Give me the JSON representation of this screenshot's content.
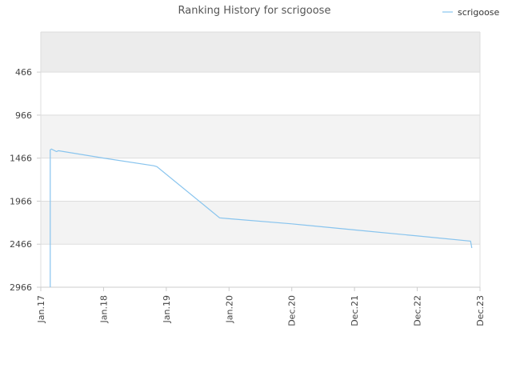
{
  "chart_data": {
    "type": "line",
    "title": "Ranking History for scrigoose",
    "xlabel": "",
    "ylabel": "",
    "y_inverted": true,
    "grid": true,
    "legend_position": "top-right",
    "x_tick_labels": [
      "Jan.17",
      "Jan.18",
      "Jan.19",
      "Jan.20",
      "Dec.20",
      "Dec.21",
      "Dec.22",
      "Dec.23"
    ],
    "y_ticks": [
      466,
      966,
      1466,
      1966,
      2466,
      2966
    ],
    "ylim": [
      2966,
      0
    ],
    "series": [
      {
        "name": "scrigoose",
        "color": "#88c4ee",
        "points": [
          {
            "x": 0.15,
            "y": 2966
          },
          {
            "x": 0.15,
            "y": 1370
          },
          {
            "x": 0.17,
            "y": 1360
          },
          {
            "x": 0.25,
            "y": 1390
          },
          {
            "x": 0.28,
            "y": 1380
          },
          {
            "x": 1.0,
            "y": 1465
          },
          {
            "x": 1.8,
            "y": 1555
          },
          {
            "x": 1.85,
            "y": 1565
          },
          {
            "x": 2.85,
            "y": 2160
          },
          {
            "x": 3.0,
            "y": 2170
          },
          {
            "x": 4.0,
            "y": 2230
          },
          {
            "x": 5.0,
            "y": 2300
          },
          {
            "x": 6.0,
            "y": 2370
          },
          {
            "x": 6.85,
            "y": 2430
          },
          {
            "x": 6.87,
            "y": 2510
          }
        ]
      }
    ]
  },
  "colors": {
    "band_dark": "#ececec",
    "band_light": "#f3f3f3",
    "grid": "#dddddd"
  }
}
